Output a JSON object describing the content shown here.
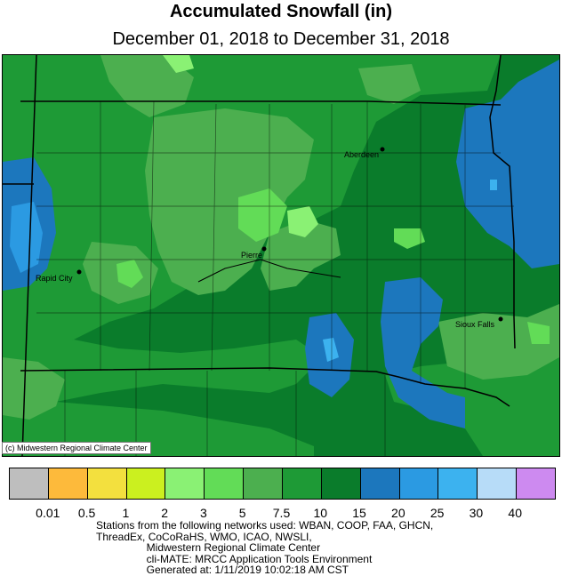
{
  "header": {
    "title": "Accumulated Snowfall (in)",
    "subtitle": "December 01, 2018 to December 31, 2018"
  },
  "map": {
    "copyright": "(c) Midwestern Regional Climate Center",
    "cities": [
      {
        "name": "Aberdeen"
      },
      {
        "name": "Pierre"
      },
      {
        "name": "Rapid City"
      },
      {
        "name": "Sioux Falls"
      }
    ]
  },
  "legend": {
    "colors": [
      "#bebebe",
      "#fdba3b",
      "#f3e03e",
      "#cbf01f",
      "#8af174",
      "#62dc57",
      "#4caf4f",
      "#1e9a36",
      "#0a7c2b",
      "#1c77bd",
      "#2b9ae2",
      "#3cb2ef",
      "#b7dcf8",
      "#cd8af0"
    ],
    "labels": [
      "0.01",
      "0.5",
      "1",
      "2",
      "3",
      "5",
      "7.5",
      "10",
      "15",
      "20",
      "25",
      "30",
      "40"
    ]
  },
  "footer": {
    "credits": "Stations from the following networks used: WBAN, COOP, FAA, GHCN,\nThreadEx, CoCoRaHS, WMO, ICAO, NWSLI,\n                 Midwestern Regional Climate Center\n                 cli-MATE: MRCC Application Tools Environment\n                 Generated at: 1/11/2019 10:02:18 AM CST"
  }
}
